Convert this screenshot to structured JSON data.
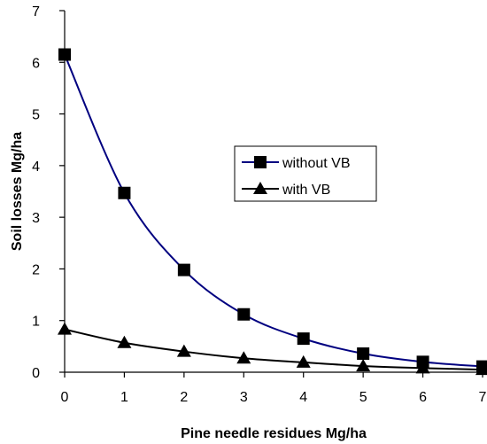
{
  "chart_data": {
    "type": "line",
    "title": "",
    "xlabel": "Pine needle residues Mg/ha",
    "ylabel": "Soil losses Mg/ha",
    "xlim": [
      0,
      7
    ],
    "ylim": [
      0,
      7
    ],
    "x_ticks": [
      "0",
      "1",
      "2",
      "3",
      "4",
      "5",
      "6",
      "7"
    ],
    "y_ticks": [
      "0",
      "1",
      "2",
      "3",
      "4",
      "5",
      "6",
      "7"
    ],
    "grid": false,
    "legend_position": "center-right",
    "series": [
      {
        "name": "without VB",
        "marker": "square",
        "color": "#000080",
        "x": [
          0,
          1,
          2,
          3,
          4,
          5,
          6,
          7
        ],
        "y": [
          6.15,
          3.47,
          1.98,
          1.12,
          0.65,
          0.36,
          0.2,
          0.11
        ]
      },
      {
        "name": "with VB",
        "marker": "triangle",
        "color": "#000000",
        "x": [
          0,
          1,
          2,
          3,
          4,
          5,
          6,
          7
        ],
        "y": [
          0.83,
          0.57,
          0.4,
          0.27,
          0.19,
          0.12,
          0.08,
          0.05
        ]
      }
    ]
  }
}
